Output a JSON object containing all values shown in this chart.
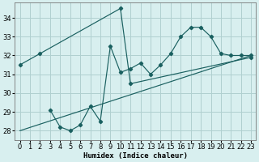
{
  "xlabel": "Humidex (Indice chaleur)",
  "xlim": [
    -0.5,
    23.5
  ],
  "ylim": [
    27.5,
    34.8
  ],
  "yticks": [
    28,
    29,
    30,
    31,
    32,
    33,
    34
  ],
  "xticks": [
    0,
    1,
    2,
    3,
    4,
    5,
    6,
    7,
    8,
    9,
    10,
    11,
    12,
    13,
    14,
    15,
    16,
    17,
    18,
    19,
    20,
    21,
    22,
    23
  ],
  "bg_color": "#d8efef",
  "grid_color": "#b0d0d0",
  "line_color": "#1a6060",
  "line1_x": [
    0,
    2,
    10,
    11,
    23
  ],
  "line1_y": [
    31.5,
    32.1,
    34.5,
    30.5,
    31.9
  ],
  "line2_x": [
    3,
    4,
    5,
    6,
    7,
    8,
    9,
    10,
    11,
    12,
    13,
    14,
    15,
    16,
    17,
    18,
    19,
    20,
    21,
    22,
    23
  ],
  "line2_y": [
    29.1,
    28.2,
    28.0,
    28.3,
    29.3,
    28.5,
    32.5,
    31.1,
    31.3,
    31.6,
    31.0,
    31.5,
    32.1,
    33.0,
    33.5,
    33.5,
    33.0,
    32.1,
    32.0,
    32.0,
    32.0
  ],
  "line3_x": [
    0,
    23
  ],
  "line3_y": [
    28.0,
    32.0
  ],
  "tick_fontsize": 6,
  "xlabel_fontsize": 6.5
}
